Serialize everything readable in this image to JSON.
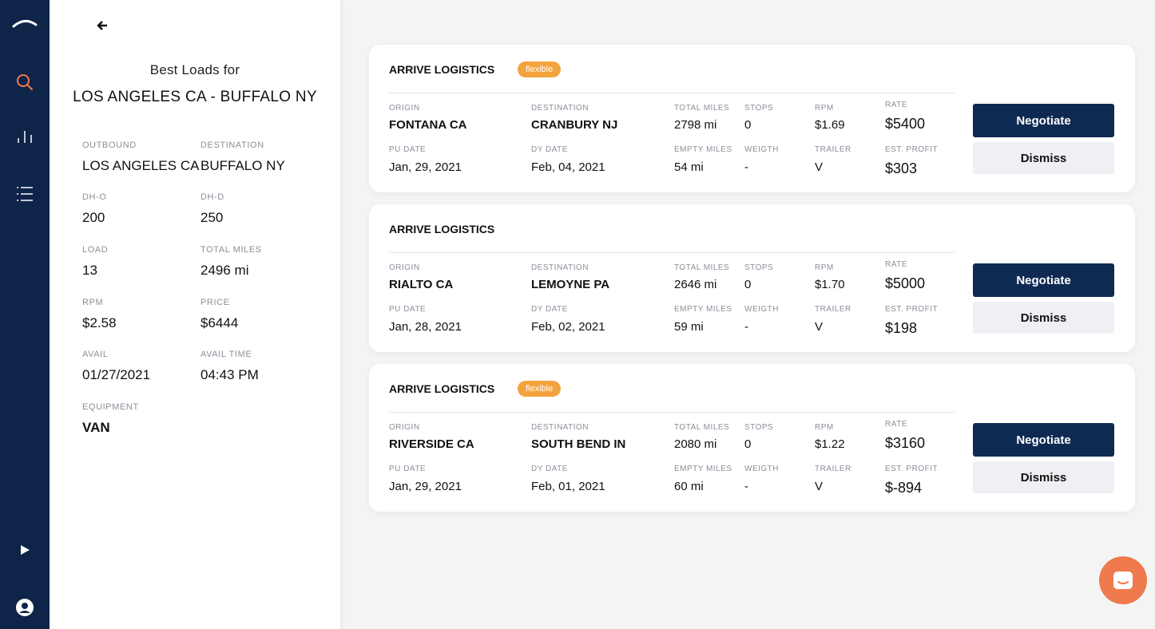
{
  "nav": {
    "icons": [
      "logo-arc-icon",
      "search-icon",
      "bar-chart-icon",
      "list-icon",
      "play-icon",
      "user-icon"
    ],
    "accent": "#ef7a4d",
    "background": "#0f2449"
  },
  "panel": {
    "title": "Best Loads for",
    "route": "LOS ANGELES CA - BUFFALO NY",
    "fields": [
      {
        "label": "OUTBOUND",
        "value": "LOS ANGELES CA"
      },
      {
        "label": "DESTINATION",
        "value": "BUFFALO NY"
      },
      {
        "label": "DH-O",
        "value": "200"
      },
      {
        "label": "DH-D",
        "value": "250"
      },
      {
        "label": "LOAD",
        "value": "13"
      },
      {
        "label": "TOTAL MILES",
        "value": "2496 mi"
      },
      {
        "label": "RPM",
        "value": "$2.58"
      },
      {
        "label": "PRICE",
        "value": "$6444"
      },
      {
        "label": "AVAIL",
        "value": "01/27/2021"
      },
      {
        "label": "AVAIL TIME",
        "value": "04:43 PM"
      },
      {
        "label": "EQUIPMENT",
        "value": "VAN"
      }
    ]
  },
  "labels": {
    "origin": "ORIGIN",
    "destination": "DESTINATION",
    "total_miles": "TOTAL MILES",
    "stops": "STOPS",
    "rpm": "RPM",
    "rate": "RATE",
    "pu_date": "PU DATE",
    "dy_date": "DY DATE",
    "empty_miles": "EMPTY MILES",
    "weigth": "WEIGTH",
    "trailer": "TRAILER",
    "est_profit": "EST. PROFIT",
    "negotiate": "Negotiate",
    "dismiss": "Dismiss"
  },
  "loads": [
    {
      "carrier": "ARRIVE LOGISTICS",
      "badge": "flexible",
      "origin": "FONTANA CA",
      "destination": "CRANBURY NJ",
      "total_miles": "2798 mi",
      "stops": "0",
      "rpm": "$1.69",
      "rate": "$5400",
      "pu_date": "Jan, 29, 2021",
      "dy_date": "Feb, 04, 2021",
      "empty_miles": "54 mi",
      "weigth": "-",
      "trailer": "V",
      "est_profit": "$303"
    },
    {
      "carrier": "ARRIVE LOGISTICS",
      "badge": "",
      "origin": "RIALTO CA",
      "destination": "LEMOYNE PA",
      "total_miles": "2646 mi",
      "stops": "0",
      "rpm": "$1.70",
      "rate": "$5000",
      "pu_date": "Jan, 28, 2021",
      "dy_date": "Feb, 02, 2021",
      "empty_miles": "59 mi",
      "weigth": "-",
      "trailer": "V",
      "est_profit": "$198"
    },
    {
      "carrier": "ARRIVE LOGISTICS",
      "badge": "flexible",
      "origin": "RIVERSIDE CA",
      "destination": "SOUTH BEND IN",
      "total_miles": "2080 mi",
      "stops": "0",
      "rpm": "$1.22",
      "rate": "$3160",
      "pu_date": "Jan, 29, 2021",
      "dy_date": "Feb, 01, 2021",
      "empty_miles": "60 mi",
      "weigth": "-",
      "trailer": "V",
      "est_profit": "$-894"
    }
  ],
  "colors": {
    "primary_button": "#0f2a52",
    "badge": "#f3a33e",
    "chat_button": "#ef7a4d"
  }
}
